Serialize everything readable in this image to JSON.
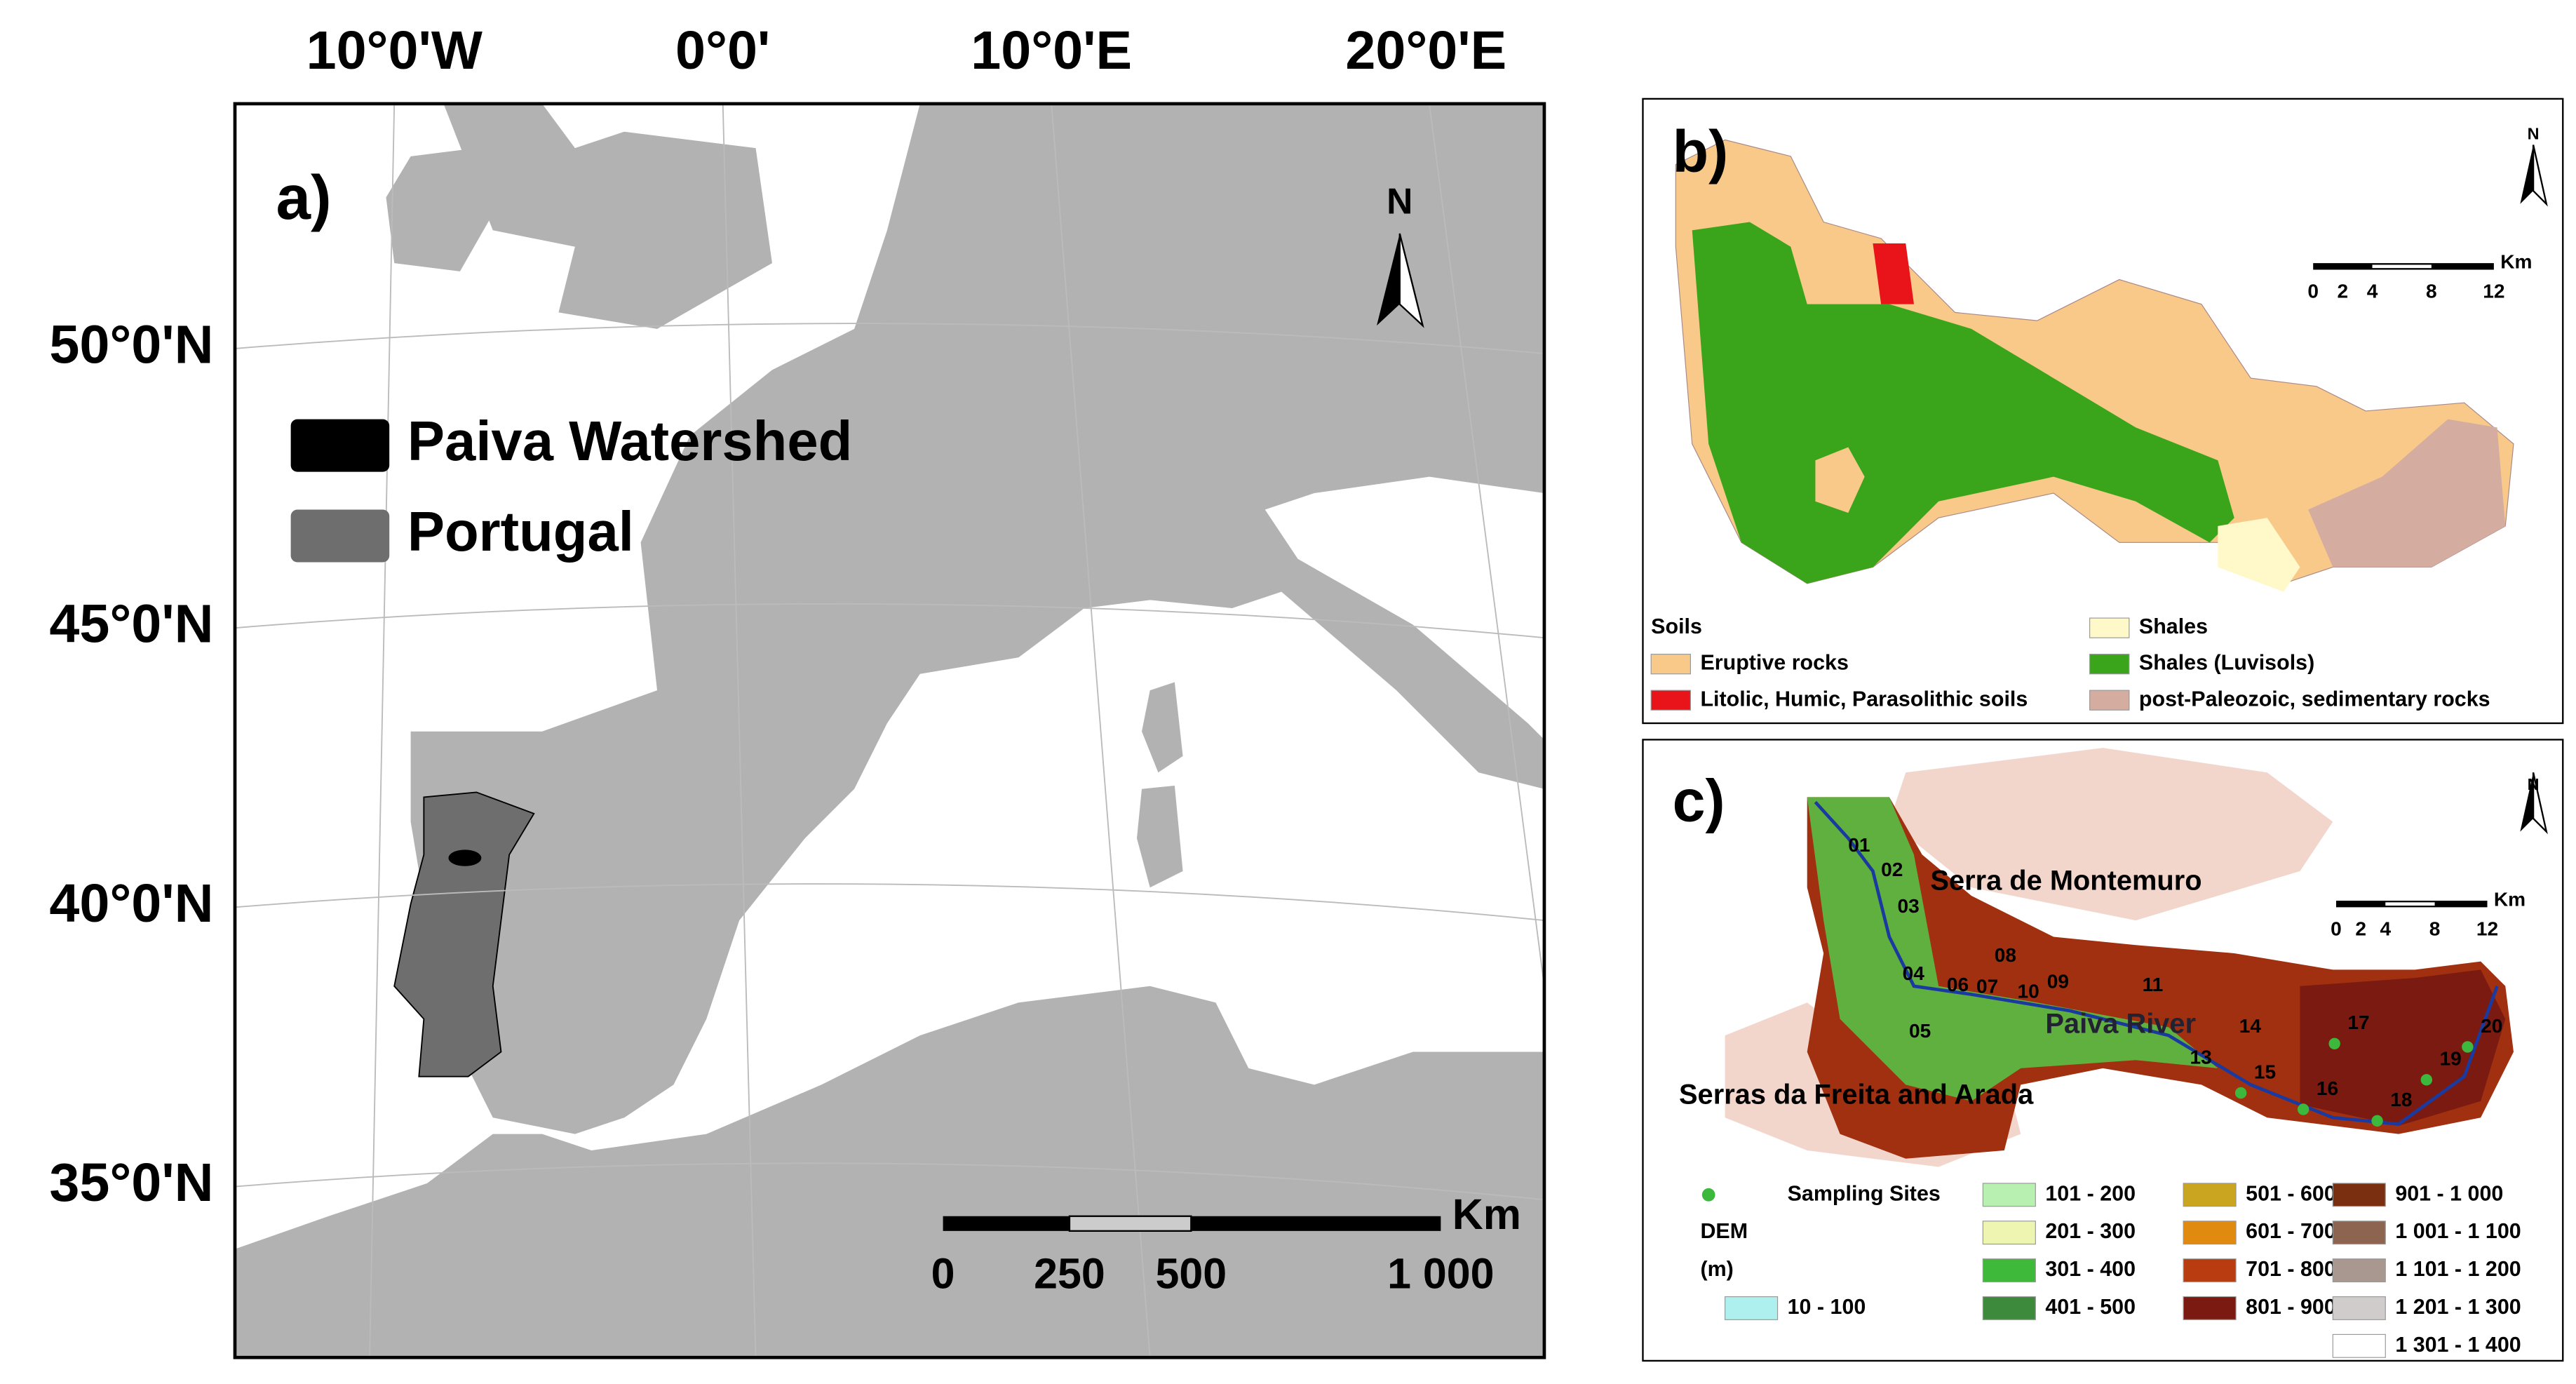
{
  "panel_a": {
    "label": "a)",
    "lon_labels": [
      "10°0'W",
      "0°0'",
      "10°0'E",
      "20°0'E"
    ],
    "lat_labels": [
      "50°0'N",
      "45°0'N",
      "40°0'N",
      "35°0'N"
    ],
    "north": "N",
    "legend": [
      {
        "label": "Paiva Watershed",
        "color": "#000000"
      },
      {
        "label": "Portugal",
        "color": "#6e6e6e"
      }
    ],
    "scale": {
      "unit": "Km",
      "ticks": [
        "0",
        "250",
        "500",
        "1 000"
      ]
    }
  },
  "panel_b": {
    "label": "b)",
    "north": "N",
    "scale": {
      "unit": "Km",
      "ticks": [
        "0",
        "2",
        "4",
        "8",
        "12"
      ]
    },
    "legend_title": "Soils",
    "legend": [
      {
        "label": "Eruptive rocks",
        "color": "#f9c98a"
      },
      {
        "label": "Litolic, Humic, Parasolithic soils",
        "color": "#e8141a"
      },
      {
        "label": "Shales",
        "color": "#fff8c8"
      },
      {
        "label": "Shales (Luvisols)",
        "color": "#3aa51a"
      },
      {
        "label": "post-Paleozoic, sedimentary rocks",
        "color": "#d4ada0"
      }
    ]
  },
  "panel_c": {
    "label": "c)",
    "north": "N",
    "scale": {
      "unit": "Km",
      "ticks": [
        "0",
        "2",
        "4",
        "8",
        "12"
      ]
    },
    "places": [
      "Serra de Montemuro",
      "Paiva River",
      "Serras da Freita and Arada"
    ],
    "sites": [
      "01",
      "02",
      "03",
      "04",
      "05",
      "06",
      "07",
      "08",
      "09",
      "10",
      "11",
      "13",
      "14",
      "15",
      "16",
      "17",
      "18",
      "19",
      "20"
    ],
    "sampling_label": "Sampling Sites",
    "sampling_color": "#3cb93c",
    "dem_title": "DEM",
    "dem_unit": "(m)",
    "classes": [
      {
        "label": "10 - 100",
        "color": "#aef0ee"
      },
      {
        "label": "101 - 200",
        "color": "#b7f0b0"
      },
      {
        "label": "201 - 300",
        "color": "#eef5b0"
      },
      {
        "label": "301 - 400",
        "color": "#3fb93a"
      },
      {
        "label": "401 - 500",
        "color": "#3d8a3d"
      },
      {
        "label": "501 - 600",
        "color": "#c9a520"
      },
      {
        "label": "601 - 700",
        "color": "#e08a10"
      },
      {
        "label": "701 - 800",
        "color": "#b83c10"
      },
      {
        "label": "801 - 900",
        "color": "#7a1a10"
      },
      {
        "label": "901 - 1 000",
        "color": "#7a3010"
      },
      {
        "label": "1 001 - 1 100",
        "color": "#8c6450"
      },
      {
        "label": "1 101 - 1 200",
        "color": "#a89890"
      },
      {
        "label": "1 201 - 1 300",
        "color": "#d0cccc"
      },
      {
        "label": "1 301 - 1 400",
        "color": "#ffffff"
      }
    ]
  }
}
